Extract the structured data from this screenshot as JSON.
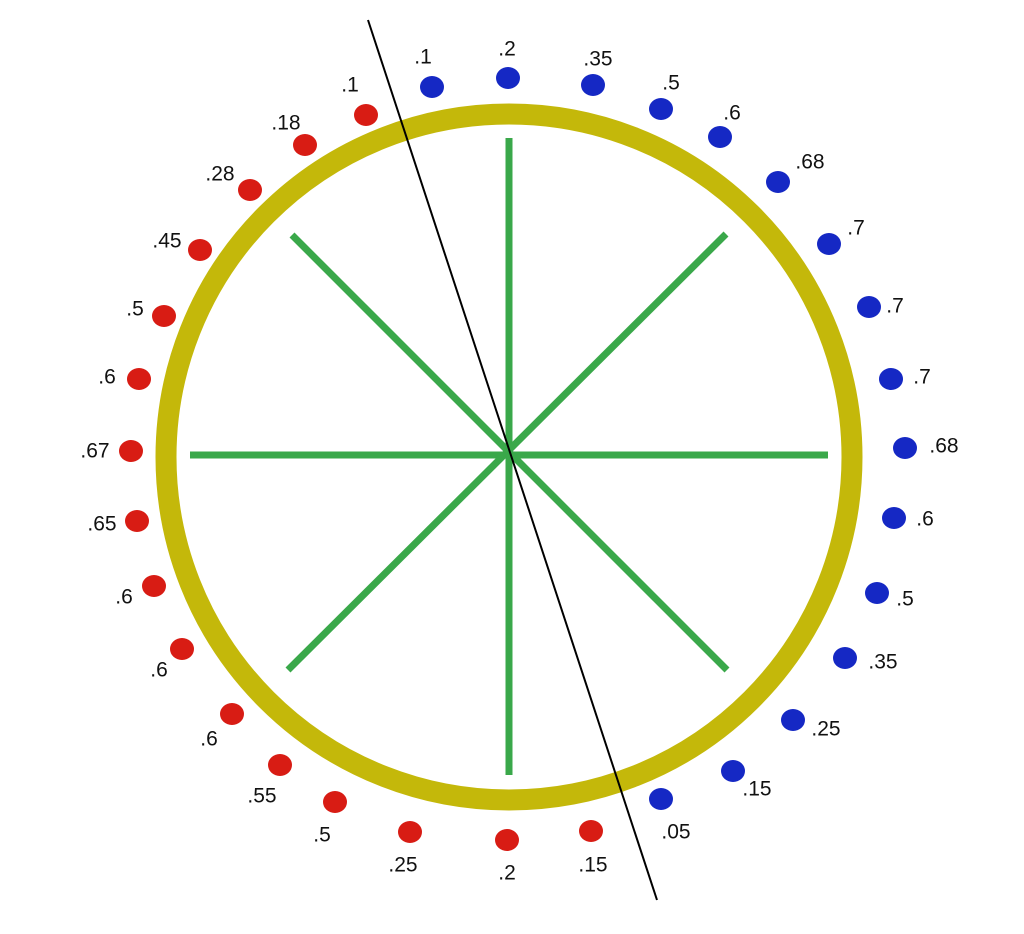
{
  "colors": {
    "ring": "#c4b80a",
    "spokes": "#3aa84a",
    "red_dot": "#d81c14",
    "blue_dot": "#1528c4",
    "line": "#000000"
  },
  "red_points": [
    {
      "label": ".1"
    },
    {
      "label": ".18"
    },
    {
      "label": ".28"
    },
    {
      "label": ".45"
    },
    {
      "label": ".5"
    },
    {
      "label": ".6"
    },
    {
      "label": ".67"
    },
    {
      "label": ".65"
    },
    {
      "label": ".6"
    },
    {
      "label": ".6"
    },
    {
      "label": ".6"
    },
    {
      "label": ".55"
    },
    {
      "label": ".5"
    },
    {
      "label": ".25"
    },
    {
      "label": ".2"
    },
    {
      "label": ".15"
    }
  ],
  "blue_points": [
    {
      "label": ".1"
    },
    {
      "label": ".2"
    },
    {
      "label": ".35"
    },
    {
      "label": ".5"
    },
    {
      "label": ".6"
    },
    {
      "label": ".68"
    },
    {
      "label": ".7"
    },
    {
      "label": ".7"
    },
    {
      "label": ".7"
    },
    {
      "label": ".68"
    },
    {
      "label": ".6"
    },
    {
      "label": ".5"
    },
    {
      "label": ".35"
    },
    {
      "label": ".25"
    },
    {
      "label": ".15"
    },
    {
      "label": ".05"
    }
  ]
}
